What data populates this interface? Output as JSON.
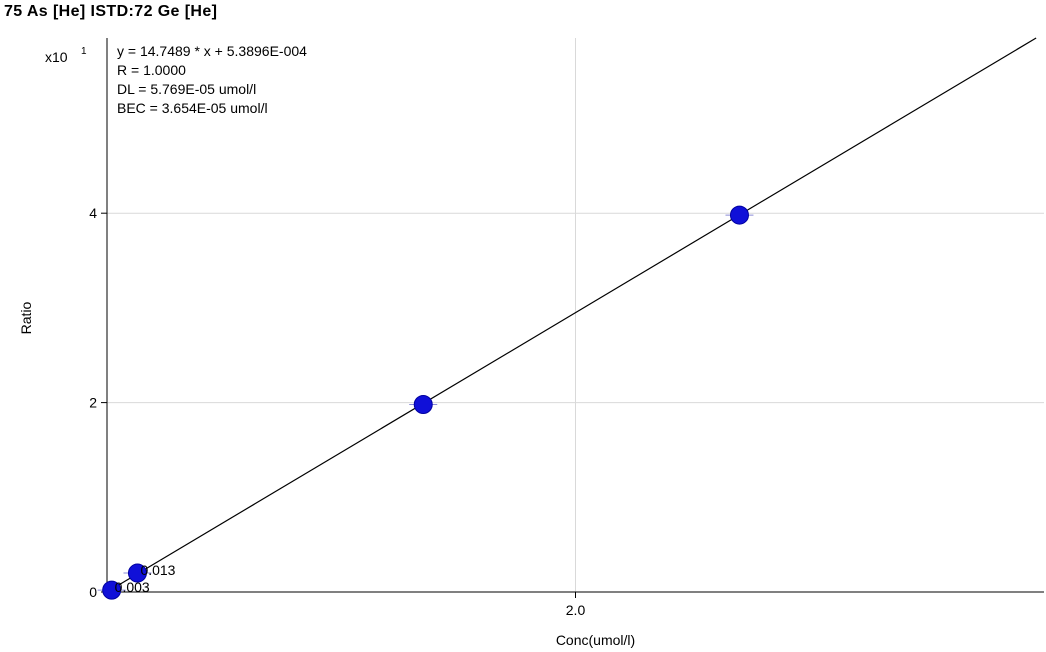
{
  "chart_data": {
    "type": "scatter",
    "title": "75 As [He] ISTD:72 Ge [He]",
    "xlabel": "Conc(umol/l)",
    "ylabel": "Ratio",
    "y_multiplier_label": "x10",
    "y_multiplier_exponent": "1",
    "xlim": [
      0,
      4.0
    ],
    "ylim": [
      0,
      5.85
    ],
    "x_ticks": [
      {
        "value": 2.0,
        "label": "2.0"
      }
    ],
    "y_ticks": [
      {
        "value": 0,
        "label": "0"
      },
      {
        "value": 2,
        "label": "2"
      },
      {
        "value": 4,
        "label": "4"
      }
    ],
    "grid": true,
    "annotations": [
      "y = 14.7489 * x  + 5.3896E-004",
      "R =  1.0000",
      "DL = 5.769E-05 umol/l",
      "BEC = 3.654E-05 umol/l"
    ],
    "point_labels": [
      {
        "text": "0.003",
        "x": 0.02,
        "y": 0.02
      },
      {
        "text": "0.013",
        "x": 0.13,
        "y": 0.2
      }
    ],
    "series": [
      {
        "color": "#1010d8",
        "points": [
          {
            "x": 0.02,
            "y": 0.02
          },
          {
            "x": 0.13,
            "y": 0.2
          },
          {
            "x": 1.35,
            "y": 1.98
          },
          {
            "x": 2.7,
            "y": 3.98
          }
        ]
      }
    ],
    "fit_line": {
      "slope": 14.7489,
      "intercept": 0.00053896,
      "y_multiplier": 10,
      "color": "#000000"
    }
  }
}
